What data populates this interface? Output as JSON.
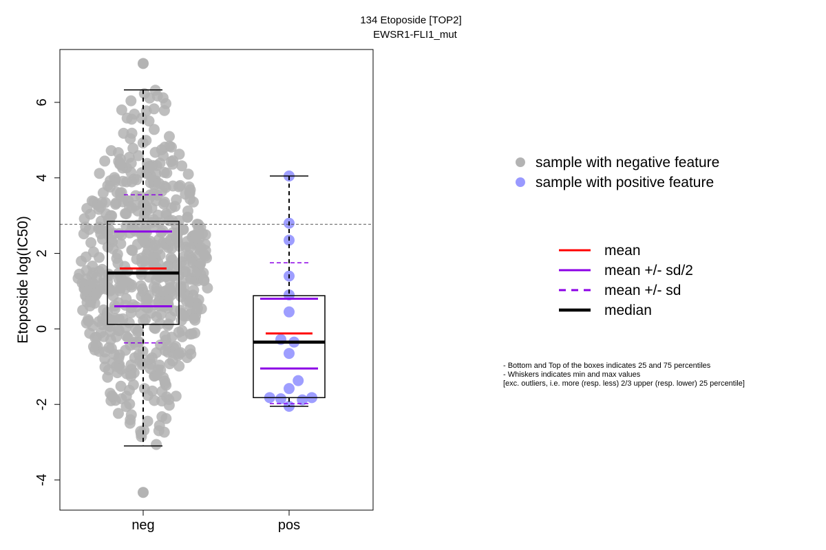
{
  "chart_data": {
    "type": "boxplot",
    "title": "134 Etoposide [TOP2]",
    "subtitle": "EWSR1-FLI1_mut",
    "ylabel": "Etoposide log(IC50)",
    "xlabel": "",
    "ylim": [
      -4.8,
      7.4
    ],
    "y_ticks": [
      -4,
      -2,
      0,
      2,
      4,
      6
    ],
    "categories": [
      "neg",
      "pos"
    ],
    "reference_line": 2.77,
    "groups": [
      {
        "name": "neg",
        "color": "#b3b3b3",
        "whisker_low": -3.1,
        "q1": 0.12,
        "median": 1.48,
        "q3": 2.85,
        "whisker_high": 6.33,
        "mean": 1.6,
        "mean_minus_half_sd": 0.6,
        "mean_plus_half_sd": 2.58,
        "mean_minus_sd": -0.37,
        "mean_plus_sd": 3.55,
        "outliers": [
          7.03,
          -4.33
        ],
        "n_points": 620
      },
      {
        "name": "pos",
        "color": "#9999ff",
        "whisker_low": -2.05,
        "q1": -1.82,
        "median": -0.35,
        "q3": 0.88,
        "whisker_high": 4.05,
        "mean": -0.12,
        "mean_minus_half_sd": -1.05,
        "mean_plus_half_sd": 0.8,
        "mean_minus_sd": -1.98,
        "mean_plus_sd": 1.75,
        "points": [
          {
            "x": 0,
            "y": 4.05
          },
          {
            "x": 0,
            "y": 2.8
          },
          {
            "x": 0,
            "y": 2.35
          },
          {
            "x": 0,
            "y": 1.4
          },
          {
            "x": 0,
            "y": 0.9
          },
          {
            "x": 0,
            "y": 0.45
          },
          {
            "x": -0.2,
            "y": -0.28
          },
          {
            "x": 0.12,
            "y": -0.35
          },
          {
            "x": 0,
            "y": -0.65
          },
          {
            "x": 0.22,
            "y": -1.37
          },
          {
            "x": 0,
            "y": -1.58
          },
          {
            "x": -0.47,
            "y": -1.82
          },
          {
            "x": -0.2,
            "y": -1.85
          },
          {
            "x": 0.32,
            "y": -1.88
          },
          {
            "x": 0.55,
            "y": -1.82
          },
          {
            "x": 0,
            "y": -2.05
          }
        ]
      }
    ],
    "legend_points": [
      {
        "label": "sample with negative feature",
        "color": "#b3b3b3"
      },
      {
        "label": "sample with positive feature",
        "color": "#9999ff"
      }
    ],
    "legend_lines": [
      {
        "label": "mean",
        "color": "#ff0000",
        "style": "solid"
      },
      {
        "label": "mean +/- sd/2",
        "color": "#8b00e6",
        "style": "solid"
      },
      {
        "label": "mean +/- sd",
        "color": "#8b00e6",
        "style": "dashed"
      },
      {
        "label": "median",
        "color": "#000000",
        "style": "thick"
      }
    ],
    "notes": [
      "- Bottom and Top of the boxes indicates 25 and 75 percentiles",
      "- Whiskers indicates min and max values",
      "[exc. outliers, i.e. more (resp. less) 2/3 upper (resp. lower) 25 percentile]"
    ]
  }
}
